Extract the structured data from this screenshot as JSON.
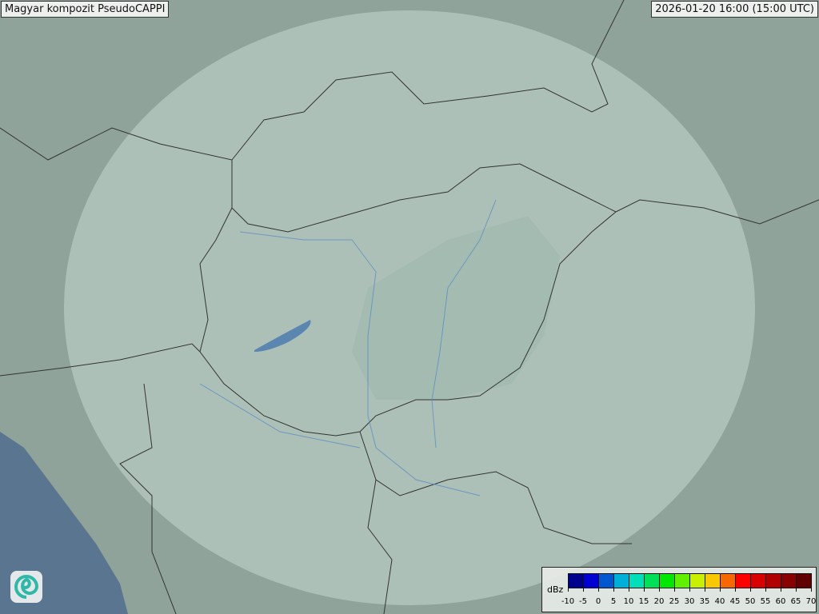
{
  "title": "Magyar kompozit  PseudoCAPPI",
  "timestamp": "2026-01-20 16:00 (15:00 UTC)",
  "legend": {
    "unit": "dBz",
    "ticks": [
      "-10",
      "-5",
      "0",
      "5",
      "10",
      "15",
      "20",
      "25",
      "30",
      "35",
      "40",
      "45",
      "50",
      "55",
      "60",
      "65",
      "70"
    ],
    "colors": [
      "#00008f",
      "#0000d0",
      "#0058d0",
      "#00b0d8",
      "#00e0b8",
      "#00e058",
      "#00e800",
      "#60f000",
      "#c8f000",
      "#f8c800",
      "#f86800",
      "#ff0000",
      "#d80000",
      "#b00000",
      "#880000",
      "#600000"
    ]
  },
  "map": {
    "land_color": "#8fa39a",
    "radar_coverage_color": "#c5d6cd",
    "sea_color": "#5a7590",
    "precipitation": "none"
  },
  "logo": "met-service-spiral-logo"
}
